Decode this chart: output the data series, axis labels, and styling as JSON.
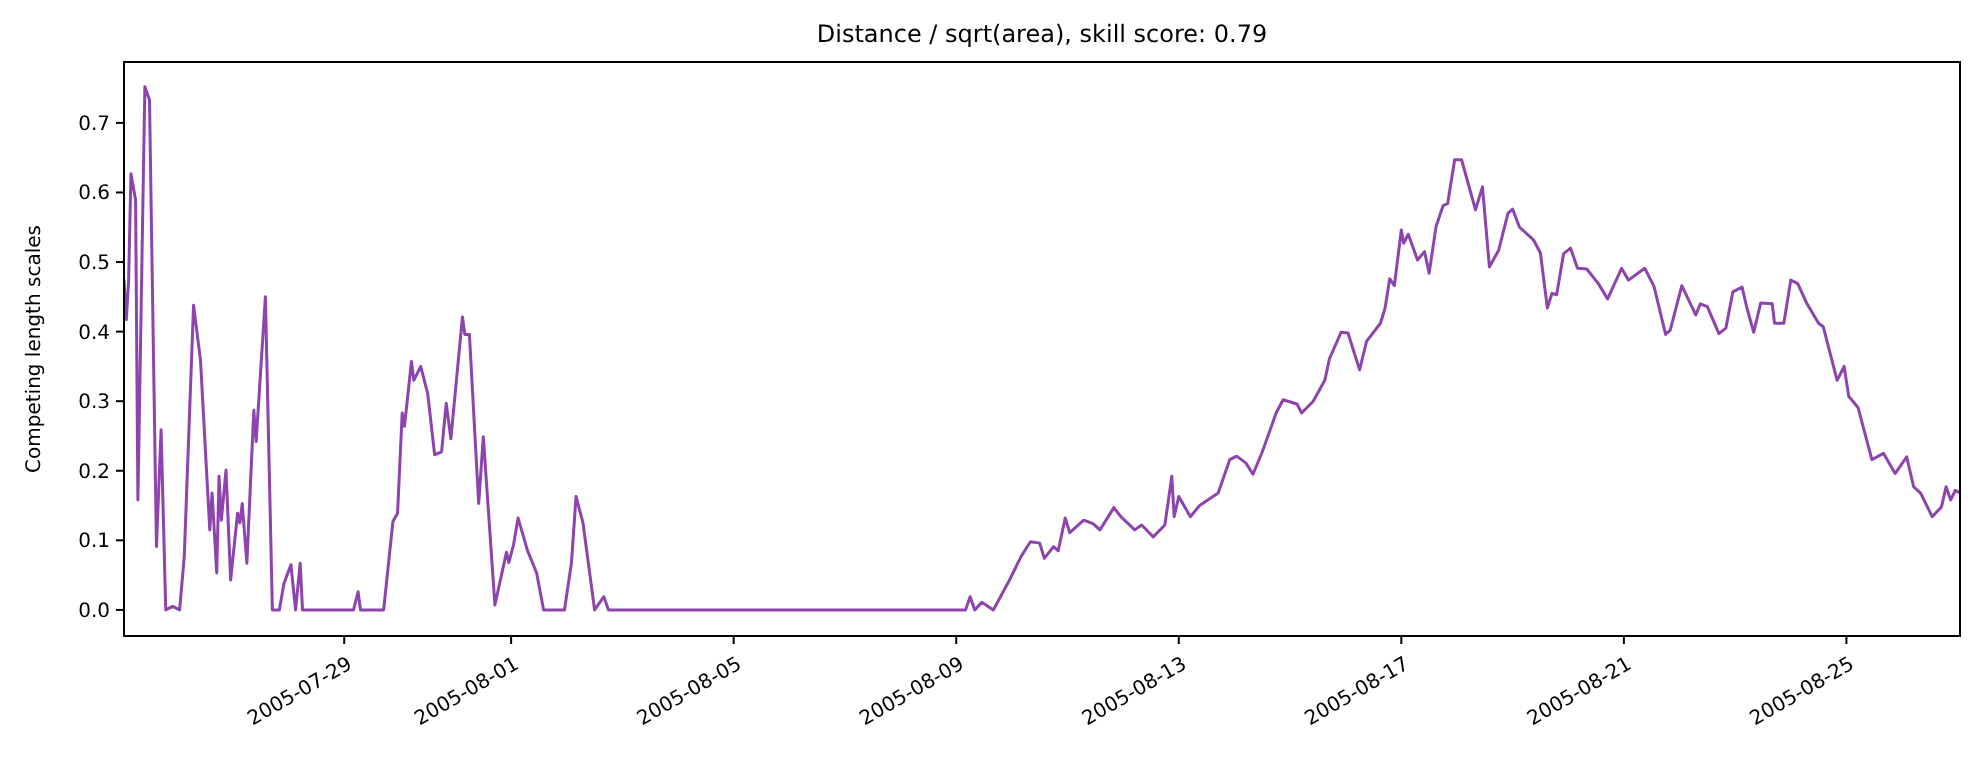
{
  "chart_data": {
    "type": "line",
    "title": "Distance / sqrt(area), skill score: 0.79",
    "ylabel": "Competing length scales",
    "xlim": [
      "2005-07-25T01:00",
      "2005-08-27T01:00"
    ],
    "xticks": [
      "2005-07-29",
      "2005-08-01",
      "2005-08-05",
      "2005-08-09",
      "2005-08-13",
      "2005-08-17",
      "2005-08-21",
      "2005-08-25"
    ],
    "ylim": [
      -0.0375,
      0.7875
    ],
    "yticks": [
      {
        "value": 0,
        "label": "0.0"
      },
      {
        "value": 0.1,
        "label": "0.1"
      },
      {
        "value": 0.2,
        "label": "0.2"
      },
      {
        "value": 0.3,
        "label": "0.3"
      },
      {
        "value": 0.4,
        "label": "0.4"
      },
      {
        "value": 0.5,
        "label": "0.5"
      },
      {
        "value": 0.6,
        "label": "0.6"
      },
      {
        "value": 0.7,
        "label": "0.7"
      }
    ],
    "grid": false,
    "marker": "none",
    "line_style": "solid",
    "series": [
      {
        "color": "#8e44ad",
        "x": [
          "2005-07-25T01:00",
          "2005-07-25T02:00",
          "2005-07-25T03:00",
          "2005-07-25T04:00",
          "2005-07-25T06:00",
          "2005-07-25T07:00",
          "2005-07-25T10:00",
          "2005-07-25T12:00",
          "2005-07-25T15:00",
          "2005-07-25T17:00",
          "2005-07-25T19:00",
          "2005-07-25T22:00",
          "2005-07-26T01:00",
          "2005-07-26T03:00",
          "2005-07-26T07:00",
          "2005-07-26T10:00",
          "2005-07-26T14:00",
          "2005-07-26T15:00",
          "2005-07-26T17:00",
          "2005-07-26T18:00",
          "2005-07-26T19:00",
          "2005-07-26T21:00",
          "2005-07-26T23:00",
          "2005-07-27T02:00",
          "2005-07-27T03:00",
          "2005-07-27T04:00",
          "2005-07-27T06:00",
          "2005-07-27T09:00",
          "2005-07-27T10:00",
          "2005-07-27T14:00",
          "2005-07-27T17:00",
          "2005-07-27T20:00",
          "2005-07-27T22:00",
          "2005-07-28T01:00",
          "2005-07-28T03:00",
          "2005-07-28T05:00",
          "2005-07-28T06:00",
          "2005-07-29T04:00",
          "2005-07-29T06:00",
          "2005-07-29T07:00",
          "2005-07-29T17:00",
          "2005-07-29T21:00",
          "2005-07-29T23:00",
          "2005-07-30T01:00",
          "2005-07-30T02:00",
          "2005-07-30T05:00",
          "2005-07-30T06:00",
          "2005-07-30T09:00",
          "2005-07-30T12:00",
          "2005-07-30T15:00",
          "2005-07-30T18:00",
          "2005-07-30T20:00",
          "2005-07-30T22:00",
          "2005-07-31T03:00",
          "2005-07-31T04:00",
          "2005-07-31T06:00",
          "2005-07-31T10:00",
          "2005-07-31T12:00",
          "2005-07-31T17:00",
          "2005-07-31T22:00",
          "2005-07-31T23:00",
          "2005-08-01T01:00",
          "2005-08-01T03:00",
          "2005-08-01T07:00",
          "2005-08-01T11:00",
          "2005-08-01T14:00",
          "2005-08-01T23:00",
          "2005-08-02T02:00",
          "2005-08-02T04:00",
          "2005-08-02T07:00",
          "2005-08-02T12:00",
          "2005-08-02T16:00",
          "2005-08-02T18:00",
          "2005-08-09T04:00",
          "2005-08-09T06:00",
          "2005-08-09T08:00",
          "2005-08-09T11:00",
          "2005-08-09T16:00",
          "2005-08-09T23:00",
          "2005-08-10T04:00",
          "2005-08-10T08:00",
          "2005-08-10T12:00",
          "2005-08-10T14:00",
          "2005-08-10T18:00",
          "2005-08-10T20:00",
          "2005-08-10T23:00",
          "2005-08-11T01:00",
          "2005-08-11T07:00",
          "2005-08-11T11:00",
          "2005-08-11T14:00",
          "2005-08-11T20:00",
          "2005-08-11T23:00",
          "2005-08-12T05:00",
          "2005-08-12T08:00",
          "2005-08-12T13:00",
          "2005-08-12T18:00",
          "2005-08-12T21:00",
          "2005-08-12T22:00",
          "2005-08-13T00:00",
          "2005-08-13T05:00",
          "2005-08-13T09:00",
          "2005-08-13T17:00",
          "2005-08-13T22:00",
          "2005-08-14T01:00",
          "2005-08-14T05:00",
          "2005-08-14T08:00",
          "2005-08-14T12:00",
          "2005-08-14T18:00",
          "2005-08-14T21:00",
          "2005-08-15T03:00",
          "2005-08-15T05:00",
          "2005-08-15T10:00",
          "2005-08-15T15:00",
          "2005-08-15T17:00",
          "2005-08-15T22:00",
          "2005-08-16T01:00",
          "2005-08-16T06:00",
          "2005-08-16T09:00",
          "2005-08-16T15:00",
          "2005-08-16T17:00",
          "2005-08-16T19:00",
          "2005-08-16T21:00",
          "2005-08-17T00:00",
          "2005-08-17T01:00",
          "2005-08-17T03:00",
          "2005-08-17T07:00",
          "2005-08-17T10:00",
          "2005-08-17T12:00",
          "2005-08-17T15:00",
          "2005-08-17T18:00",
          "2005-08-17T20:00",
          "2005-08-17T23:00",
          "2005-08-18T02:00",
          "2005-08-18T08:00",
          "2005-08-18T11:00",
          "2005-08-18T14:00",
          "2005-08-18T18:00",
          "2005-08-18T22:00",
          "2005-08-19T00:00",
          "2005-08-19T03:00",
          "2005-08-19T09:00",
          "2005-08-19T12:00",
          "2005-08-19T15:00",
          "2005-08-19T17:00",
          "2005-08-19T19:00",
          "2005-08-19T22:00",
          "2005-08-20T01:00",
          "2005-08-20T04:00",
          "2005-08-20T08:00",
          "2005-08-20T13:00",
          "2005-08-20T17:00",
          "2005-08-20T23:00",
          "2005-08-21T02:00",
          "2005-08-21T09:00",
          "2005-08-21T13:00",
          "2005-08-21T18:00",
          "2005-08-21T20:00",
          "2005-08-22T01:00",
          "2005-08-22T07:00",
          "2005-08-22T09:00",
          "2005-08-22T12:00",
          "2005-08-22T17:00",
          "2005-08-22T20:00",
          "2005-08-22T23:00",
          "2005-08-23T03:00",
          "2005-08-23T05:00",
          "2005-08-23T08:00",
          "2005-08-23T11:00",
          "2005-08-23T16:00",
          "2005-08-23T17:00",
          "2005-08-23T21:00",
          "2005-08-24T00:00",
          "2005-08-24T03:00",
          "2005-08-24T07:00",
          "2005-08-24T12:00",
          "2005-08-24T14:00",
          "2005-08-24T20:00",
          "2005-08-24T23:00",
          "2005-08-25T01:00",
          "2005-08-25T05:00",
          "2005-08-25T11:00",
          "2005-08-25T16:00",
          "2005-08-25T21:00",
          "2005-08-26T02:00",
          "2005-08-26T05:00",
          "2005-08-26T08:00",
          "2005-08-26T13:00",
          "2005-08-26T17:00",
          "2005-08-26T19:00",
          "2005-08-26T21:00",
          "2005-08-26T23:00",
          "2005-08-27T01:00"
        ],
        "values": [
          0.474,
          0.417,
          0.474,
          0.627,
          0.589,
          0.158,
          0.752,
          0.733,
          0.091,
          0.259,
          0,
          0.005,
          0,
          0.077,
          0.438,
          0.359,
          0.115,
          0.168,
          0.053,
          0.192,
          0.129,
          0.201,
          0.043,
          0.139,
          0.125,
          0.153,
          0.067,
          0.287,
          0.242,
          0.45,
          0,
          0,
          0.038,
          0.065,
          0,
          0.067,
          0,
          0,
          0.026,
          0,
          0,
          0.127,
          0.139,
          0.283,
          0.264,
          0.357,
          0.33,
          0.35,
          0.311,
          0.223,
          0.227,
          0.297,
          0.246,
          0.421,
          0.396,
          0.396,
          0.153,
          0.249,
          0.007,
          0.083,
          0.068,
          0.093,
          0.132,
          0.086,
          0.053,
          0,
          0,
          0.067,
          0.163,
          0.125,
          0,
          0.019,
          0,
          0,
          0.019,
          0,
          0.011,
          0,
          0.043,
          0.077,
          0.098,
          0.096,
          0.074,
          0.091,
          0.085,
          0.132,
          0.111,
          0.129,
          0.124,
          0.115,
          0.147,
          0.134,
          0.115,
          0.122,
          0.105,
          0.122,
          0.192,
          0.134,
          0.163,
          0.134,
          0.15,
          0.168,
          0.216,
          0.221,
          0.211,
          0.195,
          0.227,
          0.283,
          0.302,
          0.296,
          0.283,
          0.3,
          0.33,
          0.361,
          0.399,
          0.398,
          0.345,
          0.386,
          0.412,
          0.434,
          0.476,
          0.466,
          0.546,
          0.527,
          0.54,
          0.503,
          0.515,
          0.484,
          0.551,
          0.581,
          0.584,
          0.647,
          0.647,
          0.575,
          0.608,
          0.493,
          0.517,
          0.57,
          0.576,
          0.55,
          0.532,
          0.513,
          0.434,
          0.455,
          0.453,
          0.512,
          0.52,
          0.491,
          0.49,
          0.469,
          0.447,
          0.491,
          0.474,
          0.491,
          0.465,
          0.396,
          0.402,
          0.466,
          0.424,
          0.44,
          0.436,
          0.397,
          0.405,
          0.457,
          0.464,
          0.435,
          0.399,
          0.441,
          0.44,
          0.412,
          0.412,
          0.474,
          0.469,
          0.44,
          0.412,
          0.407,
          0.33,
          0.35,
          0.307,
          0.291,
          0.216,
          0.225,
          0.196,
          0.22,
          0.177,
          0.168,
          0.134,
          0.148,
          0.177,
          0.158,
          0.172,
          0.168
        ]
      }
    ]
  }
}
